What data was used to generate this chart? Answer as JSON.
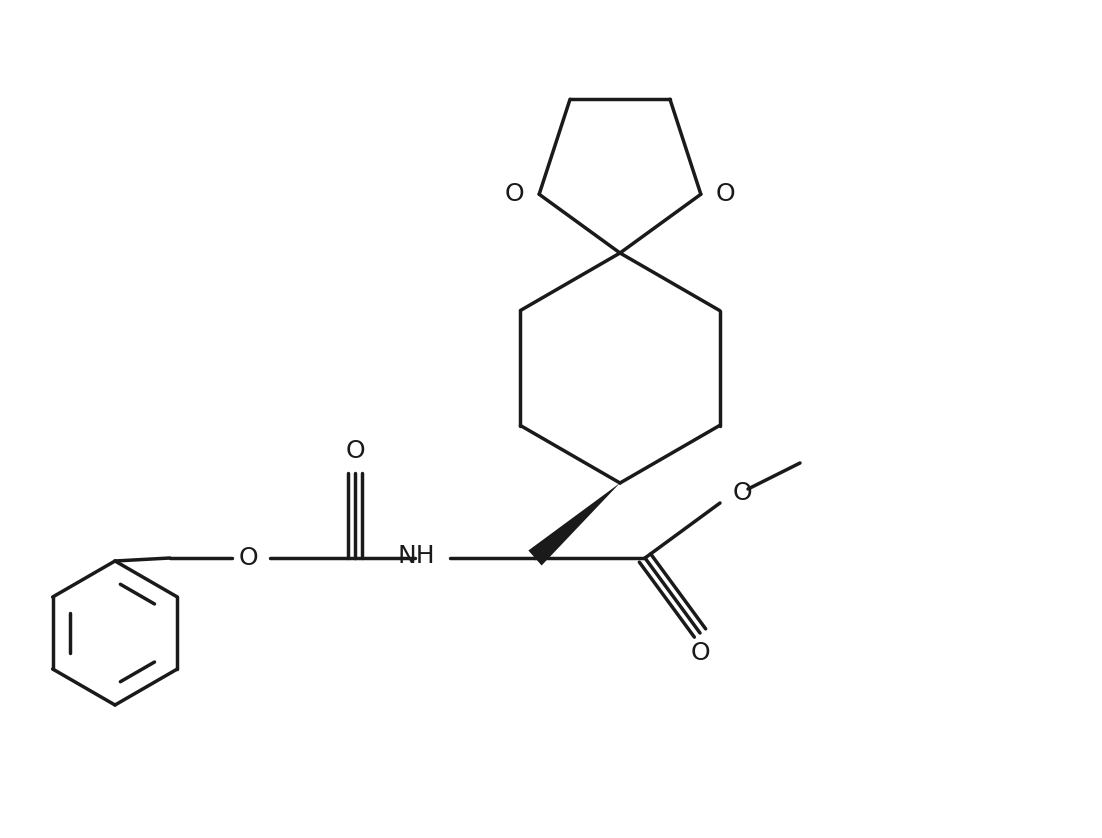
{
  "bg_color": "#ffffff",
  "line_color": "#1a1a1a",
  "line_width": 2.5,
  "wedge_color": "#1a1a1a",
  "label_color": "#1a1a1a",
  "O_labels": [
    "O",
    "O",
    "O",
    "O",
    "O"
  ],
  "N_label": "NH",
  "font_size": 18
}
